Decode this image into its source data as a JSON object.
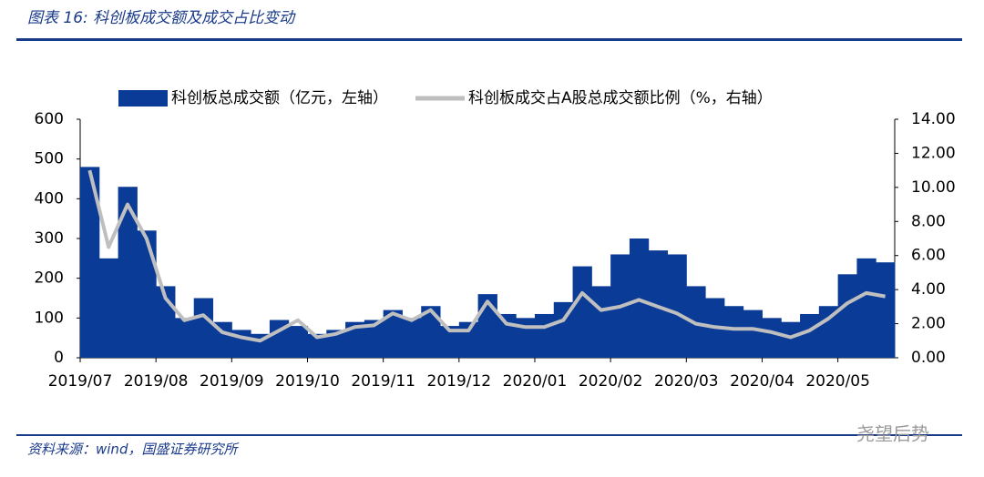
{
  "header": {
    "title": "图表 16:  科创板成交额及成交占比变动"
  },
  "chart_data": {
    "type": "bar",
    "categories": [
      "2019/07",
      null,
      null,
      null,
      "2019/08",
      null,
      null,
      null,
      "2019/09",
      null,
      null,
      null,
      "2019/10",
      null,
      null,
      null,
      "2019/11",
      null,
      null,
      null,
      "2019/12",
      null,
      null,
      null,
      "2020/01",
      null,
      null,
      null,
      "2020/02",
      null,
      null,
      null,
      "2020/03",
      null,
      null,
      null,
      "2020/04",
      null,
      null,
      null,
      "2020/05",
      null,
      null
    ],
    "series": [
      {
        "name": "科创板总成交额（亿元，左轴）",
        "type": "bar",
        "color": "#0a3b96",
        "values": [
          480,
          250,
          430,
          320,
          180,
          100,
          150,
          90,
          70,
          60,
          95,
          80,
          60,
          70,
          90,
          95,
          120,
          100,
          130,
          80,
          90,
          160,
          110,
          100,
          110,
          140,
          230,
          180,
          260,
          300,
          270,
          260,
          180,
          150,
          130,
          120,
          100,
          90,
          110,
          130,
          210,
          250,
          240
        ]
      },
      {
        "name": "科创板成交占A股总成交额比例（%，右轴）",
        "type": "line",
        "axis": "y2",
        "color": "#bfbfbf",
        "values": [
          11.0,
          6.5,
          9.0,
          7.0,
          3.5,
          2.2,
          2.5,
          1.5,
          1.2,
          1.0,
          1.6,
          2.2,
          1.2,
          1.4,
          1.8,
          1.9,
          2.6,
          2.2,
          2.8,
          1.6,
          1.6,
          3.3,
          2.0,
          1.8,
          1.8,
          2.2,
          3.8,
          2.8,
          3.0,
          3.4,
          3.0,
          2.6,
          2.0,
          1.8,
          1.7,
          1.7,
          1.5,
          1.2,
          1.6,
          2.3,
          3.2,
          3.8,
          3.6
        ]
      }
    ],
    "ylim": [
      0,
      600
    ],
    "yticks": [
      0,
      100,
      200,
      300,
      400,
      500,
      600
    ],
    "y2lim": [
      0,
      14
    ],
    "y2ticks": [
      {
        "value": 0,
        "label": "0.00"
      },
      {
        "value": 2,
        "label": "2.00"
      },
      {
        "value": 4,
        "label": "4.00"
      },
      {
        "value": 6,
        "label": "6.00"
      },
      {
        "value": 8,
        "label": "8.00"
      },
      {
        "value": 10,
        "label": "10.00"
      },
      {
        "value": 12,
        "label": "12.00"
      },
      {
        "value": 14,
        "label": "14.00"
      }
    ],
    "legend": "top"
  },
  "footer": {
    "source": "资料来源：wind，国盛证券研究所",
    "watermark": "尧望后势"
  }
}
